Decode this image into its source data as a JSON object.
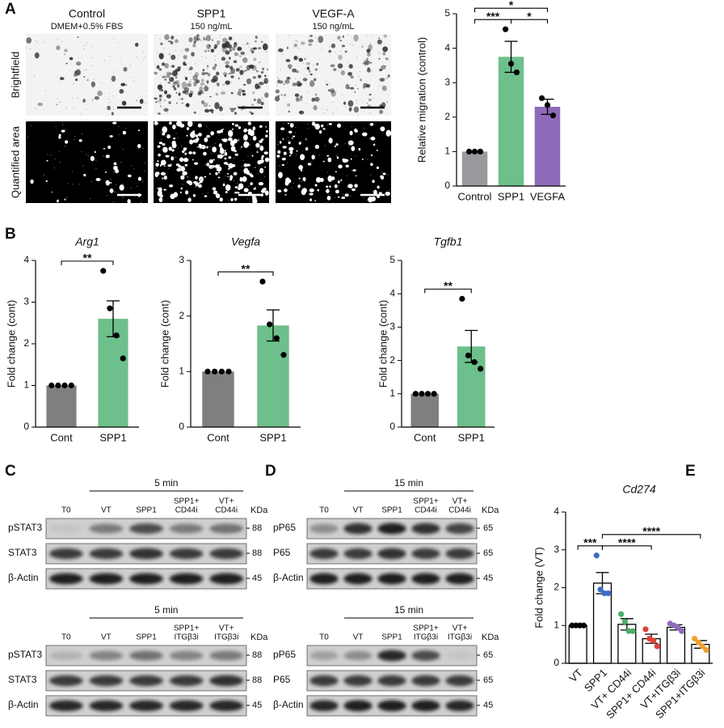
{
  "panel_letters": [
    "A",
    "B",
    "C",
    "D",
    "E"
  ],
  "micrographs": {
    "columns": [
      {
        "title": "Control",
        "subtitle": "DMEM+0.5% FBS"
      },
      {
        "title": "SPP1",
        "subtitle": "150 ng/mL"
      },
      {
        "title": "VEGF-A",
        "subtitle": "150 ng/mL"
      }
    ],
    "rows": [
      "Brightfield",
      "Quantified area"
    ]
  },
  "chart_data": [
    {
      "type": "bar",
      "ylabel": "Relative migration (control)",
      "categories": [
        "Control",
        "SPP1",
        "VEGFA"
      ],
      "values": [
        1,
        3.75,
        2.3
      ],
      "errors": [
        0,
        0.45,
        0.22
      ],
      "points": [
        [
          1,
          1,
          1
        ],
        [
          4.55,
          3.55,
          3.3
        ],
        [
          2.55,
          2.35,
          2.05
        ]
      ],
      "bar_colors": [
        "#9a9a9e",
        "#6dbf8b",
        "#8e6bb8"
      ],
      "point_colors": [
        "#000000",
        "#000000",
        "#000000"
      ],
      "ylim": [
        0,
        5
      ],
      "yticks": [
        0,
        1,
        2,
        3,
        4,
        5
      ],
      "significance": [
        {
          "pair": [
            "Control",
            "SPP1"
          ],
          "label": "***"
        },
        {
          "pair": [
            "SPP1",
            "VEGFA"
          ],
          "label": "*"
        },
        {
          "pair": [
            "Control",
            "VEGFA"
          ],
          "label": "*"
        }
      ]
    },
    {
      "type": "bar",
      "title": "Arg1",
      "ylabel": "Fold change (cont)",
      "categories": [
        "Cont",
        "SPP1"
      ],
      "values": [
        1,
        2.6
      ],
      "errors": [
        0,
        0.43
      ],
      "points": [
        [
          1,
          1,
          1,
          1
        ],
        [
          3.75,
          2.85,
          2.2,
          1.65
        ]
      ],
      "bar_colors": [
        "#7f7f7f",
        "#6dbf8b"
      ],
      "point_colors": [
        "#000000",
        "#000000"
      ],
      "ylim": [
        0,
        4
      ],
      "yticks": [
        0,
        1,
        2,
        3,
        4
      ],
      "significance": [
        {
          "pair": [
            "Cont",
            "SPP1"
          ],
          "label": "**"
        }
      ]
    },
    {
      "type": "bar",
      "title": "Vegfa",
      "ylabel": "Fold change (cont)",
      "categories": [
        "Cont",
        "SPP1"
      ],
      "values": [
        1,
        1.83
      ],
      "errors": [
        0,
        0.28
      ],
      "points": [
        [
          1,
          1,
          1,
          1
        ],
        [
          2.62,
          1.85,
          1.6,
          1.3
        ]
      ],
      "bar_colors": [
        "#7f7f7f",
        "#6dbf8b"
      ],
      "point_colors": [
        "#000000",
        "#000000"
      ],
      "ylim": [
        0,
        3
      ],
      "yticks": [
        0,
        1,
        2,
        3
      ],
      "significance": [
        {
          "pair": [
            "Cont",
            "SPP1"
          ],
          "label": "**"
        }
      ]
    },
    {
      "type": "bar",
      "title": "Tgfb1",
      "ylabel": "Fold change (cont)",
      "categories": [
        "Cont",
        "SPP1"
      ],
      "values": [
        1,
        2.42
      ],
      "errors": [
        0,
        0.48
      ],
      "points": [
        [
          1,
          1,
          1,
          1
        ],
        [
          3.85,
          2.15,
          1.95,
          1.75
        ]
      ],
      "bar_colors": [
        "#7f7f7f",
        "#6dbf8b"
      ],
      "point_colors": [
        "#000000",
        "#000000"
      ],
      "ylim": [
        0,
        5
      ],
      "yticks": [
        0,
        1,
        2,
        3,
        4,
        5
      ],
      "significance": [
        {
          "pair": [
            "Cont",
            "SPP1"
          ],
          "label": "**"
        }
      ]
    },
    {
      "type": "bar",
      "title": "Cd274",
      "ylabel": "Fold change (VT)",
      "categories": [
        "VT",
        "SPP1",
        "VT+ CD44i",
        "SPP1+ CD44i",
        "VT+ITGβ3i",
        "SPP1+ITGβ3i"
      ],
      "values": [
        1,
        2.12,
        1.03,
        0.65,
        0.95,
        0.5
      ],
      "errors": [
        0,
        0.28,
        0.15,
        0.12,
        0.07,
        0.1
      ],
      "points": [
        [
          1,
          1,
          1,
          1
        ],
        [
          2.85,
          1.95,
          1.85,
          1.85
        ],
        [
          1.3,
          1.1,
          0.85,
          0.85
        ],
        [
          0.9,
          0.65,
          0.6,
          0.45
        ],
        [
          1.05,
          1.0,
          0.95,
          0.85
        ],
        [
          0.65,
          0.55,
          0.45,
          0.35
        ]
      ],
      "bar_colors": [
        "#ffffff",
        "#ffffff",
        "#ffffff",
        "#ffffff",
        "#ffffff",
        "#ffffff"
      ],
      "edge_color": "#000000",
      "point_colors": [
        "#000000",
        "#3d6cc4",
        "#4caf6a",
        "#e0403a",
        "#8e6bb8",
        "#f0a030"
      ],
      "ylim": [
        0,
        4
      ],
      "yticks": [
        0,
        1,
        2,
        3,
        4
      ],
      "significance": [
        {
          "pair": [
            "VT",
            "SPP1"
          ],
          "label": "***"
        },
        {
          "pair": [
            "SPP1",
            "SPP1+ CD44i"
          ],
          "label": "****"
        },
        {
          "pair": [
            "SPP1",
            "SPP1+ITGβ3i"
          ],
          "label": "****"
        }
      ]
    }
  ],
  "blots": [
    {
      "unit": "KDa",
      "groups": [
        {
          "time": "5 min",
          "lanes": [
            [
              "T0"
            ],
            [
              "VT"
            ],
            [
              "SPP1"
            ],
            [
              "SPP1+",
              "CD44i"
            ],
            [
              "VT+",
              "CD44i"
            ]
          ],
          "rows": [
            {
              "name": "pSTAT3",
              "kda": 88
            },
            {
              "name": "STAT3",
              "kda": 88
            },
            {
              "name": "β-Actin",
              "kda": 45
            }
          ]
        },
        {
          "time": "5 min",
          "lanes": [
            [
              "T0"
            ],
            [
              "VT"
            ],
            [
              "SPP1"
            ],
            [
              "SPP1+",
              "ITGβ3i"
            ],
            [
              "VT+",
              "ITGβ3i"
            ]
          ],
          "rows": [
            {
              "name": "pSTAT3",
              "kda": 88
            },
            {
              "name": "STAT3",
              "kda": 88
            },
            {
              "name": "β-Actin",
              "kda": 45
            }
          ]
        }
      ]
    },
    {
      "unit": "KDa",
      "groups": [
        {
          "time": "15 min",
          "lanes": [
            [
              "T0"
            ],
            [
              "VT"
            ],
            [
              "SPP1"
            ],
            [
              "SPP1+",
              "CD44i"
            ],
            [
              "VT+",
              "CD44i"
            ]
          ],
          "rows": [
            {
              "name": "pP65",
              "kda": 65
            },
            {
              "name": "P65",
              "kda": 65
            },
            {
              "name": "β-Actin",
              "kda": 45
            }
          ]
        },
        {
          "time": "15 min",
          "lanes": [
            [
              "T0"
            ],
            [
              "VT"
            ],
            [
              "SPP1"
            ],
            [
              "SPP1+",
              "ITGβ3i"
            ],
            [
              "VT+",
              "ITGβ3i"
            ]
          ],
          "rows": [
            {
              "name": "pP65",
              "kda": 65
            },
            {
              "name": "P65",
              "kda": 65
            },
            {
              "name": "β-Actin",
              "kda": 45
            }
          ]
        }
      ]
    }
  ]
}
